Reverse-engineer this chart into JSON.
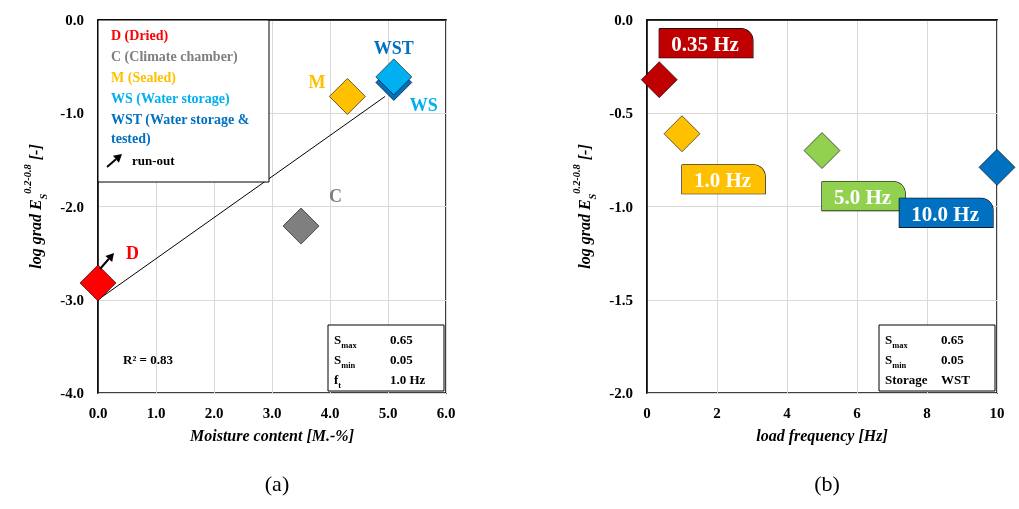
{
  "chart_data": [
    {
      "type": "scatter",
      "title": "(a)",
      "xlabel": "Moisture content [M.-%]",
      "ylabel": "log grad E$_{S}$$^{0.2-0.8}$ [-]",
      "xlim": [
        0,
        6
      ],
      "xticks": [
        {
          "value": 0,
          "label": "0.0"
        },
        {
          "value": 1,
          "label": "1.0"
        },
        {
          "value": 2,
          "label": "2.0"
        },
        {
          "value": 3,
          "label": "3.0"
        },
        {
          "value": 4,
          "label": "4.0"
        },
        {
          "value": 5,
          "label": "5.0"
        },
        {
          "value": 6,
          "label": "6.0"
        }
      ],
      "ylim": [
        -4,
        0
      ],
      "yticks": [
        {
          "value": -4,
          "label": "-4.0"
        },
        {
          "value": -3,
          "label": "-3.0"
        },
        {
          "value": -2,
          "label": "-2.0"
        },
        {
          "value": -1,
          "label": "-1.0"
        },
        {
          "value": 0,
          "label": "0.0"
        }
      ],
      "grid": true,
      "legend": "top left",
      "marker": "diamond",
      "series": [
        {
          "name": "D (Dried)",
          "color": "#ff0000",
          "x": [
            0
          ],
          "values": [
            -2.82
          ]
        },
        {
          "name": "C (Climate chamber)",
          "color": "#7f7f7f",
          "x": [
            3.5
          ],
          "values": [
            -2.21
          ]
        },
        {
          "name": "M (Sealed)",
          "color": "#ffc000",
          "x": [
            4.3
          ],
          "values": [
            -0.82
          ]
        },
        {
          "name": "WS (Water storage)",
          "color": "#00b0f0",
          "x": [
            5.1
          ],
          "values": [
            -0.61
          ]
        },
        {
          "name": "WST (Water storage & tested)",
          "color": "#0070c0",
          "x": [
            5.1
          ],
          "values": [
            -0.67
          ]
        },
        {
          "type": "line",
          "color": "#000000",
          "marker": "none",
          "x": [
            0,
            4.95
          ],
          "values": [
            -3.0,
            -0.82
          ]
        }
      ],
      "annotations": [
        {
          "text": "D",
          "x": 0,
          "y": -2.82
        },
        {
          "text": "C",
          "x": 3.5,
          "y": -2.21
        },
        {
          "text": "M",
          "x": 4.3,
          "y": -0.82
        },
        {
          "text": "WST",
          "x": 5.1,
          "y": -0.67
        },
        {
          "text": "WS",
          "x": 5.1,
          "y": -0.61
        },
        "run-out",
        "R² = 0.83",
        "S$_{max}$ 0.65",
        "S$_{min}$ 0.05",
        "f$_{t}$ 1.0 Hz"
      ]
    },
    {
      "type": "scatter",
      "title": "(b)",
      "xlabel": "load frequency [Hz]",
      "ylabel": "log grad E$_{S}$$^{0.2-0.8}$ [-]",
      "xlim": [
        0,
        10
      ],
      "xticks": [
        0,
        2,
        4,
        6,
        8,
        10
      ],
      "ylim": [
        -2,
        0
      ],
      "yticks": [
        {
          "value": -2,
          "label": "-2.0"
        },
        {
          "value": -1.5,
          "label": "-1.5"
        },
        {
          "value": -1,
          "label": "-1.0"
        },
        {
          "value": -0.5,
          "label": "-0.5"
        },
        {
          "value": 0,
          "label": "0.0"
        }
      ],
      "grid": true,
      "marker": "diamond",
      "series": [
        {
          "color": "#c00000",
          "x": [
            0.35
          ],
          "values": [
            -0.32
          ]
        },
        {
          "color": "#ffc000",
          "x": [
            1.0
          ],
          "values": [
            -0.61
          ]
        },
        {
          "color": "#92d050",
          "x": [
            5.0
          ],
          "values": [
            -0.7
          ]
        },
        {
          "color": "#0070c0",
          "x": [
            10.0
          ],
          "values": [
            -0.79
          ]
        }
      ],
      "annotations": [
        {
          "text": "0.35 Hz",
          "x": 0.35,
          "y": -0.32
        },
        {
          "text": "1.0 Hz",
          "x": 1.0,
          "y": -0.61
        },
        {
          "text": "5.0 Hz",
          "x": 5.0,
          "y": -0.7
        },
        {
          "text": "10.0 Hz",
          "x": 10.0,
          "y": -0.79
        },
        "S$_{max}$ 0.65",
        "S$_{min}$ 0.05",
        "Storage WST"
      ]
    }
  ]
}
